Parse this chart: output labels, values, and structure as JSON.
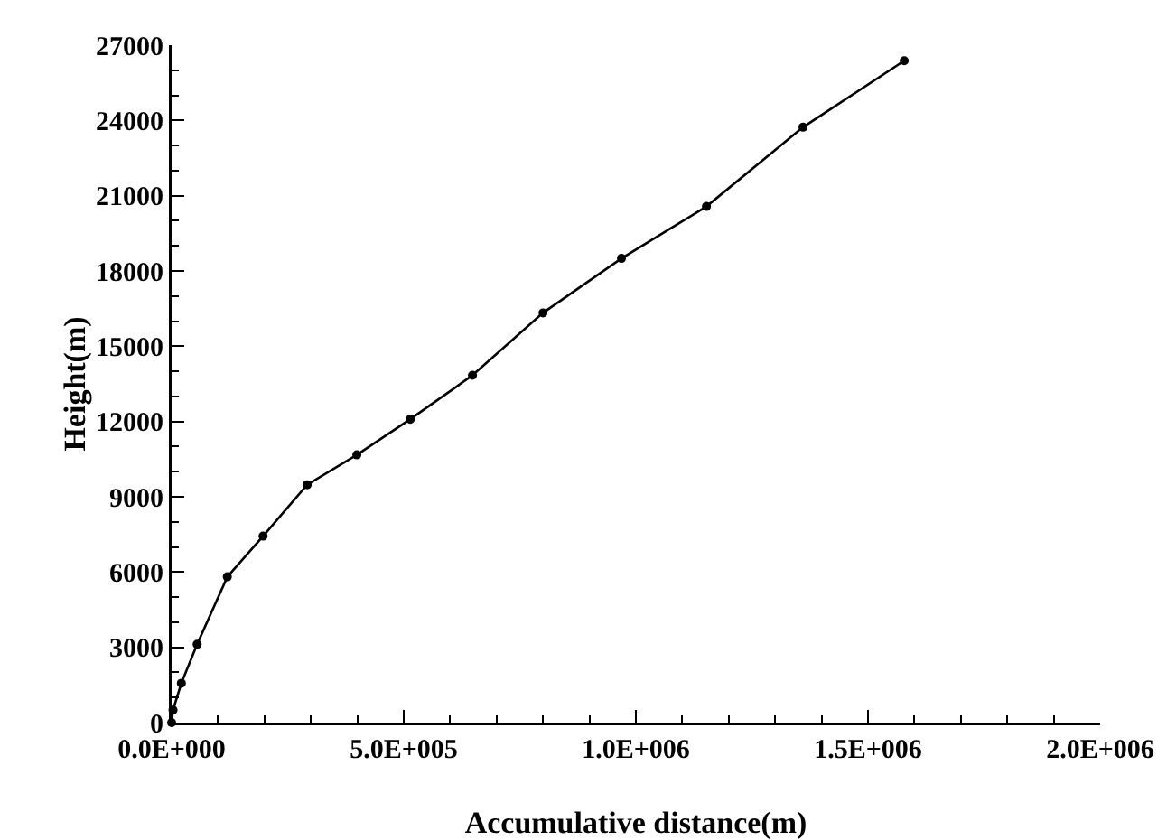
{
  "chart_data": {
    "type": "line",
    "xlabel": "Accumulative distance(m)",
    "ylabel": "Height(m)",
    "x": [
      0,
      3000,
      21000,
      55000,
      120000,
      197000,
      292000,
      399000,
      514000,
      648000,
      800000,
      969000,
      1152000,
      1360000,
      1578000
    ],
    "series": [
      {
        "color": "#000000",
        "values": [
          0,
          500,
          1570,
          3120,
          5810,
          7430,
          9480,
          10670,
          12090,
          13840,
          16330,
          18500,
          20570,
          23730,
          26380
        ]
      }
    ],
    "xlim": [
      0,
      2000000
    ],
    "xticks": [
      {
        "value": 0,
        "label": "0.0E+000"
      },
      {
        "value": 500000,
        "label": "5.0E+005"
      },
      {
        "value": 1000000,
        "label": "1.0E+006"
      },
      {
        "value": 1500000,
        "label": "1.5E+006"
      },
      {
        "value": 2000000,
        "label": "2.0E+006"
      }
    ],
    "ylim": [
      0,
      27000
    ],
    "yticks": [
      0,
      3000,
      6000,
      9000,
      12000,
      15000,
      18000,
      21000,
      24000,
      27000
    ],
    "grid": false,
    "legend": false,
    "marker": "circle",
    "line_style": "solid"
  }
}
